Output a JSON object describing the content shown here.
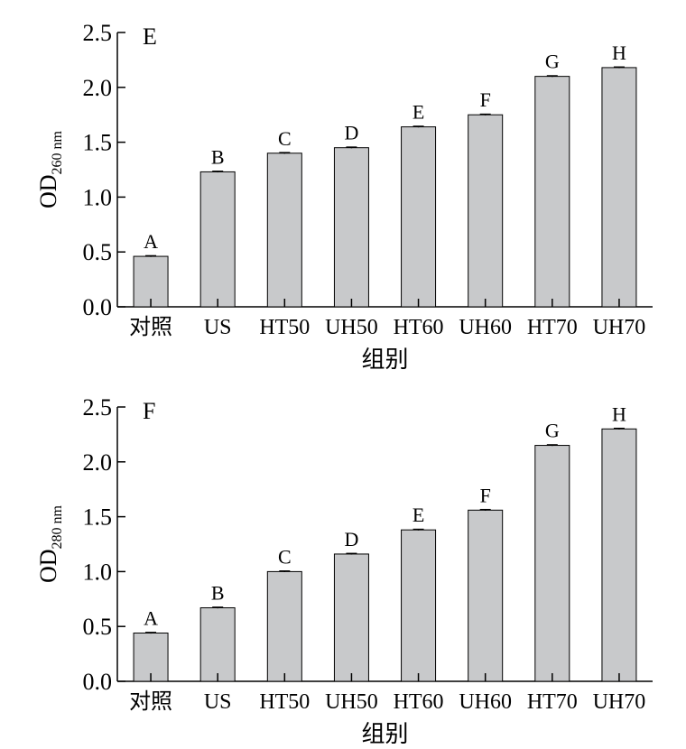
{
  "chart_data": [
    {
      "type": "bar",
      "panel_label": "E",
      "ylabel_main": "OD",
      "ylabel_sub": "260 nm",
      "xlabel": "组别",
      "categories": [
        "对照",
        "US",
        "HT50",
        "UH50",
        "HT60",
        "UH60",
        "HT70",
        "UH70"
      ],
      "values": [
        0.46,
        1.23,
        1.4,
        1.45,
        1.64,
        1.75,
        2.1,
        2.18
      ],
      "errors": [
        0.005,
        0.005,
        0.005,
        0.005,
        0.005,
        0.005,
        0.005,
        0.005
      ],
      "significance_letters": [
        "A",
        "B",
        "C",
        "D",
        "E",
        "F",
        "G",
        "H"
      ],
      "ylim": [
        0,
        2.5
      ],
      "yticks": [
        "0.0",
        "0.5",
        "1.0",
        "1.5",
        "2.0",
        "2.5"
      ],
      "bar_color": "#c8c9cb",
      "grid": false
    },
    {
      "type": "bar",
      "panel_label": "F",
      "ylabel_main": "OD",
      "ylabel_sub": "280 nm",
      "xlabel": "组别",
      "categories": [
        "对照",
        "US",
        "HT50",
        "UH50",
        "HT60",
        "UH60",
        "HT70",
        "UH70"
      ],
      "values": [
        0.44,
        0.67,
        1.0,
        1.16,
        1.38,
        1.56,
        2.15,
        2.3
      ],
      "errors": [
        0.005,
        0.005,
        0.005,
        0.005,
        0.005,
        0.005,
        0.005,
        0.005
      ],
      "significance_letters": [
        "A",
        "B",
        "C",
        "D",
        "E",
        "F",
        "G",
        "H"
      ],
      "ylim": [
        0,
        2.5
      ],
      "yticks": [
        "0.0",
        "0.5",
        "1.0",
        "1.5",
        "2.0",
        "2.5"
      ],
      "bar_color": "#c8c9cb",
      "grid": false
    }
  ]
}
